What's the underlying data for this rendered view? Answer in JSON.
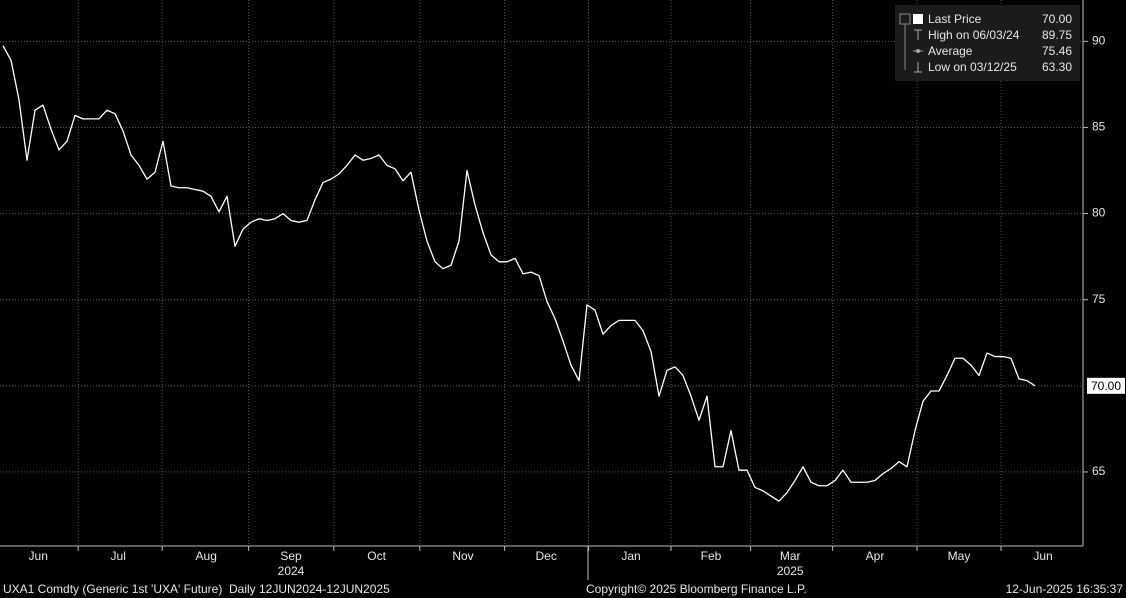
{
  "chart_data": {
    "type": "line",
    "series": [
      {
        "name": "Last Price",
        "color": "#ffffff",
        "values": [
          89.75,
          88.9,
          86.6,
          83.1,
          86.0,
          86.3,
          84.9,
          83.7,
          84.2,
          85.7,
          85.5,
          85.5,
          85.5,
          86.0,
          85.8,
          84.8,
          83.4,
          82.8,
          82.0,
          82.4,
          84.2,
          81.6,
          81.5,
          81.5,
          81.4,
          81.3,
          81.0,
          80.1,
          81.0,
          78.1,
          79.1,
          79.5,
          79.7,
          79.6,
          79.7,
          80.0,
          79.6,
          79.5,
          79.6,
          80.8,
          81.8,
          82.0,
          82.3,
          82.8,
          83.4,
          83.1,
          83.2,
          83.4,
          82.8,
          82.6,
          81.9,
          82.4,
          80.2,
          78.4,
          77.2,
          76.8,
          77.0,
          78.4,
          82.5,
          80.5,
          78.9,
          77.6,
          77.2,
          77.2,
          77.4,
          76.5,
          76.6,
          76.4,
          74.9,
          73.9,
          72.6,
          71.2,
          70.3,
          74.7,
          74.4,
          73.0,
          73.5,
          73.8,
          73.8,
          73.8,
          73.2,
          72.0,
          69.4,
          70.9,
          71.1,
          70.6,
          69.4,
          68.0,
          69.4,
          65.3,
          65.3,
          67.4,
          65.1,
          65.1,
          64.1,
          63.9,
          63.6,
          63.3,
          63.8,
          64.5,
          65.3,
          64.4,
          64.2,
          64.2,
          64.5,
          65.1,
          64.4,
          64.4,
          64.4,
          64.5,
          64.9,
          65.2,
          65.6,
          65.3,
          67.4,
          69.1,
          69.7,
          69.7,
          70.6,
          71.6,
          71.6,
          71.2,
          70.6,
          71.9,
          71.7,
          71.7,
          71.6,
          70.4,
          70.3,
          70.0
        ]
      }
    ],
    "xlim": [
      -0.375,
      135
    ],
    "ylim": [
      60.7,
      92.4
    ],
    "yticks": [
      65,
      75,
      80,
      85,
      90
    ],
    "grid": true,
    "xticks": [
      {
        "value": 4.4,
        "label": "Jun"
      },
      {
        "value": 14.4,
        "label": "Jul"
      },
      {
        "value": 25.4,
        "label": "Aug"
      },
      {
        "value": 36,
        "label": "Sep"
      },
      {
        "value": 46.7,
        "label": "Oct"
      },
      {
        "value": 57.5,
        "label": "Nov"
      },
      {
        "value": 67.9,
        "label": "Dec"
      },
      {
        "value": 78.5,
        "label": "Jan"
      },
      {
        "value": 88.5,
        "label": "Feb"
      },
      {
        "value": 98.4,
        "label": "Mar"
      },
      {
        "value": 109,
        "label": "Apr"
      },
      {
        "value": 119.5,
        "label": "May"
      },
      {
        "value": 130,
        "label": "Jun"
      }
    ],
    "year_labels": [
      {
        "value": 36,
        "label": "2024"
      },
      {
        "value": 98.4,
        "label": "2025"
      }
    ],
    "last_price": {
      "value": 70,
      "label": "70.00"
    },
    "stats": [
      {
        "name": "High on 06/03/24",
        "label": "89.75"
      },
      {
        "name": "Average",
        "label": "75.46"
      },
      {
        "name": "Low on 03/12/25",
        "label": "63.30"
      }
    ],
    "footer": {
      "security": "UXA1 Comdty (Generic 1st 'UXA' Future)  Daily 12JUN2024-12JUN2025",
      "copyright": "Copyright© 2025 Bloomberg Finance L.P.",
      "timestamp": "12-Jun-2025 16:35:37"
    }
  }
}
